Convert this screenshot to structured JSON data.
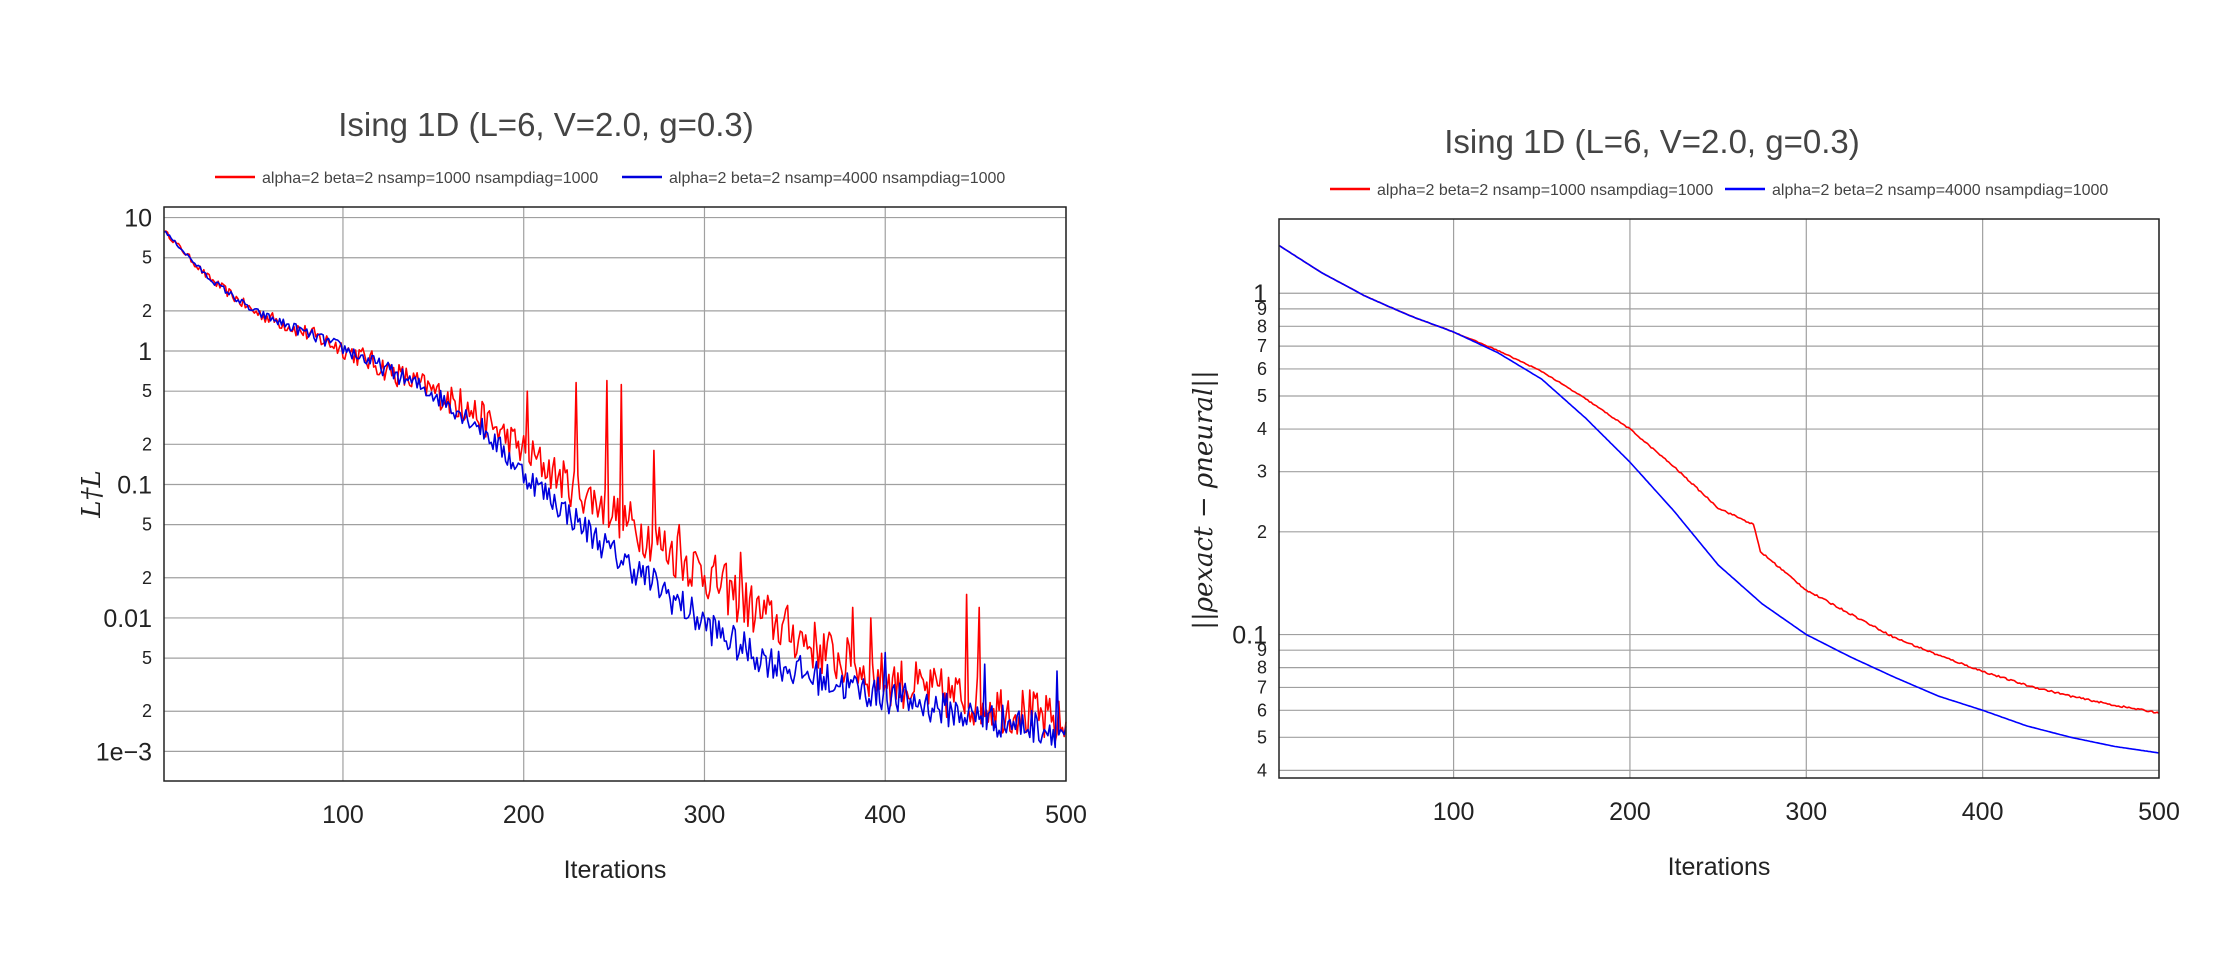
{
  "chart_data": [
    {
      "type": "line",
      "title": "Ising 1D  (L=6, V=2.0, g=0.3)",
      "xlabel": "Iterations",
      "ylabel": "L†L",
      "yscale": "log",
      "xlim": [
        1,
        500
      ],
      "ylim": [
        0.0006,
        12
      ],
      "grid": true,
      "legend_position": "top",
      "x_ticks": [
        100,
        200,
        300,
        400,
        500
      ],
      "x_tick_labels": [
        "100",
        "200",
        "300",
        "400",
        "500"
      ],
      "y_major_ticks": [
        10,
        1,
        0.1,
        0.01,
        0.001
      ],
      "y_major_labels": [
        "10",
        "1",
        "0.1",
        "0.01",
        "1e−3"
      ],
      "y_minor_ticks": [
        5,
        2,
        0.5,
        0.2,
        0.05,
        0.02,
        0.005,
        0.002
      ],
      "y_minor_labels": [
        "5",
        "2",
        "5",
        "2",
        "5",
        "2",
        "5",
        "2"
      ],
      "series": [
        {
          "name": "alpha=2 beta=2 nsamp=1000 nsampdiag=1000",
          "color": "#ff0000",
          "x": [
            1,
            25,
            50,
            75,
            100,
            125,
            150,
            175,
            200,
            225,
            250,
            275,
            300,
            325,
            350,
            375,
            400,
            425,
            450,
            475,
            500
          ],
          "y": [
            8.0,
            3.6,
            2.0,
            1.45,
            1.05,
            0.72,
            0.5,
            0.33,
            0.18,
            0.1,
            0.062,
            0.036,
            0.022,
            0.012,
            0.0075,
            0.0048,
            0.0035,
            0.0028,
            0.0024,
            0.002,
            0.0015
          ],
          "noise": 0.45,
          "spikes": [
            [
              165,
              0.52
            ],
            [
              202,
              0.5
            ],
            [
              229,
              0.58
            ],
            [
              246,
              0.6
            ],
            [
              254,
              0.56
            ],
            [
              272,
              0.18
            ],
            [
              286,
              0.05
            ],
            [
              320,
              0.031
            ],
            [
              382,
              0.012
            ],
            [
              392,
              0.01
            ],
            [
              445,
              0.015
            ],
            [
              452,
              0.012
            ]
          ]
        },
        {
          "name": "alpha=2 beta=2 nsamp=4000 nsampdiag=1000",
          "color": "#0000dd",
          "x": [
            1,
            25,
            50,
            75,
            100,
            125,
            150,
            175,
            200,
            225,
            250,
            275,
            300,
            325,
            350,
            375,
            400,
            425,
            450,
            475,
            500
          ],
          "y": [
            8.0,
            3.6,
            2.0,
            1.45,
            1.05,
            0.72,
            0.48,
            0.28,
            0.12,
            0.06,
            0.03,
            0.017,
            0.009,
            0.0055,
            0.004,
            0.0032,
            0.0026,
            0.0022,
            0.0018,
            0.0016,
            0.0014
          ],
          "noise": 0.3,
          "spikes": [
            [
              400,
              0.0055
            ],
            [
              455,
              0.0045
            ],
            [
              495,
              0.004
            ]
          ]
        }
      ]
    },
    {
      "type": "line",
      "title": "Ising 1D (L=6, V=2.0, g=0.3)",
      "xlabel": "Iterations",
      "ylabel": "||ρexact − ρneural||",
      "yscale": "log",
      "xlim": [
        1,
        500
      ],
      "ylim": [
        0.038,
        1.65
      ],
      "grid": true,
      "legend_position": "top",
      "x_ticks": [
        100,
        200,
        300,
        400,
        500
      ],
      "x_tick_labels": [
        "100",
        "200",
        "300",
        "400",
        "500"
      ],
      "y_major_ticks": [
        1,
        0.1
      ],
      "y_major_labels": [
        "1",
        "0.1"
      ],
      "y_minor_ticks": [
        0.9,
        0.8,
        0.7,
        0.6,
        0.5,
        0.4,
        0.3,
        0.2,
        0.09,
        0.08,
        0.07,
        0.06,
        0.05,
        0.04
      ],
      "y_minor_labels": [
        "9",
        "8",
        "7",
        "6",
        "5",
        "4",
        "3",
        "2",
        "9",
        "8",
        "7",
        "6",
        "5",
        "4"
      ],
      "series": [
        {
          "name": "alpha=2 beta=2 nsamp=1000 nsampdiag=1000",
          "color": "#ff0000",
          "x": [
            1,
            25,
            50,
            75,
            100,
            125,
            150,
            175,
            200,
            225,
            250,
            270,
            274,
            300,
            325,
            350,
            375,
            400,
            425,
            450,
            475,
            500
          ],
          "y": [
            1.38,
            1.15,
            0.98,
            0.86,
            0.77,
            0.68,
            0.59,
            0.49,
            0.4,
            0.31,
            0.235,
            0.21,
            0.175,
            0.135,
            0.115,
            0.098,
            0.087,
            0.078,
            0.071,
            0.066,
            0.062,
            0.059
          ],
          "noise": 0.006,
          "spikes": []
        },
        {
          "name": "alpha=2 beta=2 nsamp=4000 nsampdiag=1000",
          "color": "#0000ff",
          "x": [
            1,
            25,
            50,
            75,
            100,
            125,
            150,
            175,
            200,
            225,
            250,
            275,
            300,
            325,
            350,
            375,
            400,
            425,
            450,
            475,
            500
          ],
          "y": [
            1.38,
            1.15,
            0.98,
            0.86,
            0.77,
            0.67,
            0.56,
            0.43,
            0.32,
            0.23,
            0.16,
            0.123,
            0.1,
            0.086,
            0.075,
            0.066,
            0.06,
            0.054,
            0.05,
            0.047,
            0.045
          ],
          "noise": 0.0,
          "spikes": []
        }
      ]
    }
  ]
}
